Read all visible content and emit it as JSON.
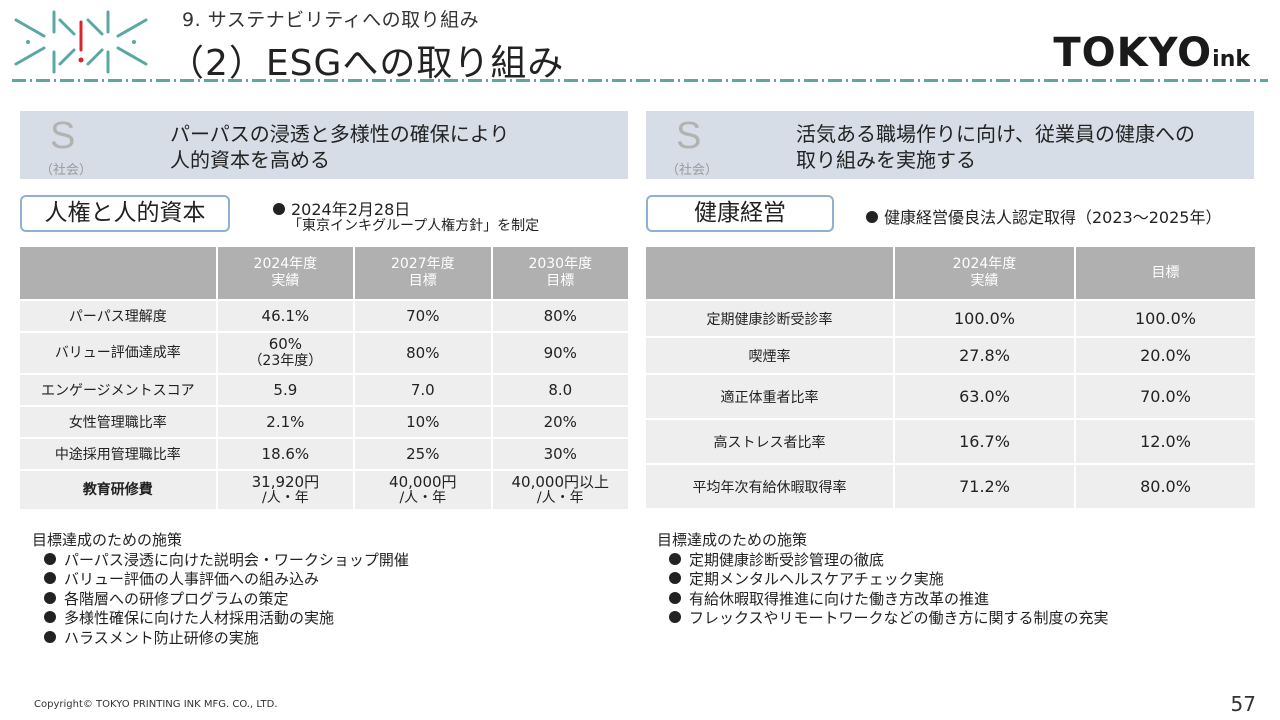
{
  "header": {
    "section_title": "9. サステナビリティへの取り組み",
    "page_title": "（2）ESGへの取り組み",
    "brand_main": "TOKYO",
    "brand_small": "ink"
  },
  "left": {
    "banner": {
      "letter": "S",
      "sub": "（社会）",
      "line1": "パーパスの浸透と多様性の確保により",
      "line2": "人的資本を高める"
    },
    "pill": "人権と人的資本",
    "note_line1": "2024年2月28日",
    "note_line2": "「東京インキグループ人権方針」を制定",
    "table": {
      "headers": [
        {
          "line1": "",
          "line2": ""
        },
        {
          "line1": "2024年度",
          "line2": "実績"
        },
        {
          "line1": "2027年度",
          "line2": "目標"
        },
        {
          "line1": "2030年度",
          "line2": "目標"
        }
      ],
      "rows": [
        {
          "label": "パーパス理解度",
          "v1": "46.1%",
          "v1b": "",
          "v2": "70%",
          "v2b": "",
          "v3": "80%",
          "v3b": ""
        },
        {
          "label": "バリュー評価達成率",
          "v1": "60%",
          "v1b": "（23年度）",
          "v2": "80%",
          "v2b": "",
          "v3": "90%",
          "v3b": ""
        },
        {
          "label": "エンゲージメントスコア",
          "v1": "5.9",
          "v1b": "",
          "v2": "7.0",
          "v2b": "",
          "v3": "8.0",
          "v3b": ""
        },
        {
          "label": "女性管理職比率",
          "v1": "2.1%",
          "v1b": "",
          "v2": "10%",
          "v2b": "",
          "v3": "20%",
          "v3b": ""
        },
        {
          "label": "中途採用管理職比率",
          "v1": "18.6%",
          "v1b": "",
          "v2": "25%",
          "v2b": "",
          "v3": "30%",
          "v3b": ""
        },
        {
          "label": "教育研修費",
          "v1": "31,920円",
          "v1b": "/人・年",
          "v2": "40,000円",
          "v2b": "/人・年",
          "v3": "40,000円以上",
          "v3b": "/人・年"
        }
      ]
    },
    "measures_title": "目標達成のための施策",
    "measures": [
      "パーパス浸透に向けた説明会・ワークショップ開催",
      "バリュー評価の人事評価への組み込み",
      "各階層への研修プログラムの策定",
      "多様性確保に向けた人材採用活動の実施",
      "ハラスメント防止研修の実施"
    ]
  },
  "right": {
    "banner": {
      "letter": "S",
      "sub": "（社会）",
      "line1": "活気ある職場作りに向け、従業員の健康への",
      "line2": "取り組みを実施する"
    },
    "pill": "健康経営",
    "note": "健康経営優良法人認定取得（2023～2025年）",
    "table": {
      "headers": [
        {
          "line1": "",
          "line2": ""
        },
        {
          "line1": "2024年度",
          "line2": "実績"
        },
        {
          "line1": "目標",
          "line2": ""
        }
      ],
      "rows": [
        {
          "label": "定期健康診断受診率",
          "v1": "100.0%",
          "v2": "100.0%"
        },
        {
          "label": "喫煙率",
          "v1": "27.8%",
          "v2": "20.0%"
        },
        {
          "label": "適正体重者比率",
          "v1": "63.0%",
          "v2": "70.0%"
        },
        {
          "label": "高ストレス者比率",
          "v1": "16.7%",
          "v2": "12.0%"
        },
        {
          "label": "平均年次有給休暇取得率",
          "v1": "71.2%",
          "v2": "80.0%"
        }
      ]
    },
    "measures_title": "目標達成のための施策",
    "measures": [
      "定期健康診断受診管理の徹底",
      "定期メンタルヘルスケアチェック実施",
      "有給休暇取得推進に向けた働き方改革の推進",
      "フレックスやリモートワークなどの働き方に関する制度の充実"
    ]
  },
  "footer": {
    "copyright": "Copyright© TOKYO PRINTING INK MFG. CO., LTD.",
    "page": "57"
  },
  "colors": {
    "accent": "#5aa8a3",
    "banner_bg": "#d6dde6",
    "header_cell": "#b0b0b0",
    "body_cell": "#eeeeee",
    "logo_red": "#d9262c"
  }
}
